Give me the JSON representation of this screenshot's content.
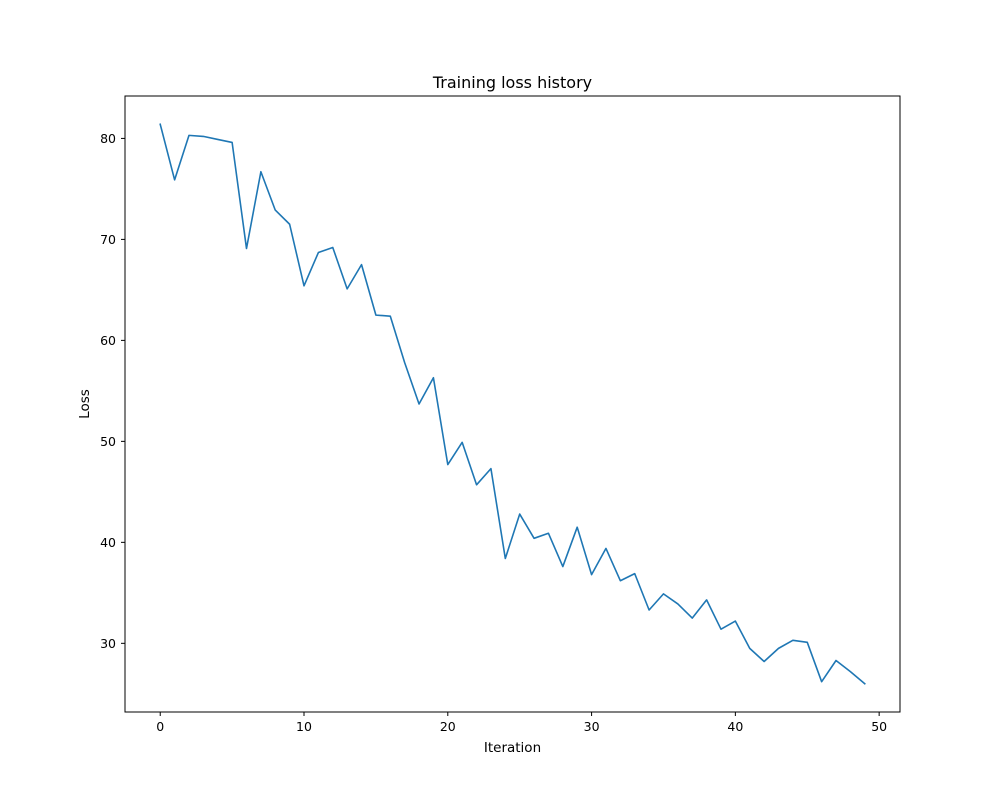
{
  "chart_data": {
    "type": "line",
    "title": "Training loss history",
    "xlabel": "Iteration",
    "ylabel": "Loss",
    "xlim": [
      -2.45,
      51.45
    ],
    "ylim": [
      23.2,
      84.2
    ],
    "xticks": [
      0,
      10,
      20,
      30,
      40,
      50
    ],
    "yticks": [
      30,
      40,
      50,
      60,
      70,
      80
    ],
    "grid": false,
    "line_color": "#1f77b4",
    "series": [
      {
        "x": [
          0,
          1,
          2,
          3,
          4,
          5,
          6,
          7,
          8,
          9,
          10,
          11,
          12,
          13,
          14,
          15,
          16,
          17,
          18,
          19,
          20,
          21,
          22,
          23,
          24,
          25,
          26,
          27,
          28,
          29,
          30,
          31,
          32,
          33,
          34,
          35,
          36,
          37,
          38,
          39,
          40,
          41,
          42,
          43,
          44,
          45,
          46,
          47,
          48,
          49
        ],
        "y": [
          81.4,
          75.9,
          80.3,
          80.2,
          79.9,
          79.6,
          69.1,
          76.7,
          72.9,
          71.5,
          65.4,
          68.7,
          69.2,
          65.1,
          67.5,
          62.5,
          62.4,
          57.8,
          53.7,
          56.3,
          47.7,
          49.9,
          45.7,
          47.3,
          38.4,
          42.8,
          40.4,
          40.9,
          37.6,
          41.5,
          36.8,
          39.4,
          36.2,
          36.9,
          33.3,
          34.9,
          33.9,
          32.5,
          34.3,
          31.4,
          32.2,
          29.5,
          28.2,
          29.5,
          30.3,
          30.1,
          26.2,
          28.3,
          27.2,
          26.0
        ]
      }
    ]
  }
}
